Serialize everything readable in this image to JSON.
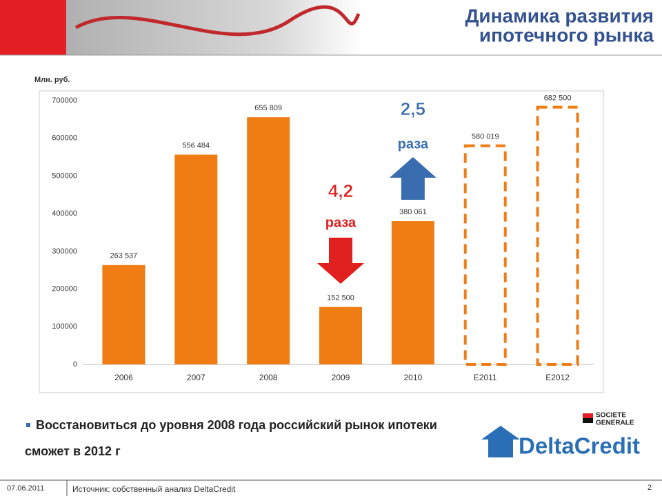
{
  "header": {
    "title_lines": [
      "Динамика развития",
      "ипотечного рынка"
    ]
  },
  "chart_data": {
    "type": "bar",
    "y_label": "Млн. руб.",
    "categories": [
      "2006",
      "2007",
      "2008",
      "2009",
      "2010",
      "E2011",
      "E2012"
    ],
    "values": [
      263537,
      556484,
      655809,
      152500,
      380061,
      580019,
      682500
    ],
    "value_labels": [
      "263 537",
      "556 484",
      "655 809",
      "152 500",
      "380 061",
      "580 019",
      "682 500"
    ],
    "dashed": [
      false,
      false,
      false,
      false,
      false,
      true,
      true
    ],
    "color": "#f07c14",
    "ylim": [
      0,
      700000
    ],
    "yticks": [
      0,
      100000,
      200000,
      300000,
      400000,
      500000,
      600000,
      700000
    ],
    "annotations": [
      {
        "category": "2009",
        "text": "4,2",
        "subtext": "раза",
        "direction": "down",
        "color": "#e0201e"
      },
      {
        "category": "2010",
        "text": "2,5",
        "subtext": "раза",
        "direction": "up",
        "color": "#3a6db0"
      }
    ]
  },
  "bullet": "Восстановиться до уровня 2008 года российский рынок ипотеки сможет в 2012 г",
  "logos": {
    "sg_line1": "SOCIETE",
    "sg_line2": "GENERALE",
    "brand": "DeltaCredit"
  },
  "footer": {
    "date": "07.06.2011",
    "source": "Источник: собственный анализ DeltaCredit",
    "page": "2"
  }
}
